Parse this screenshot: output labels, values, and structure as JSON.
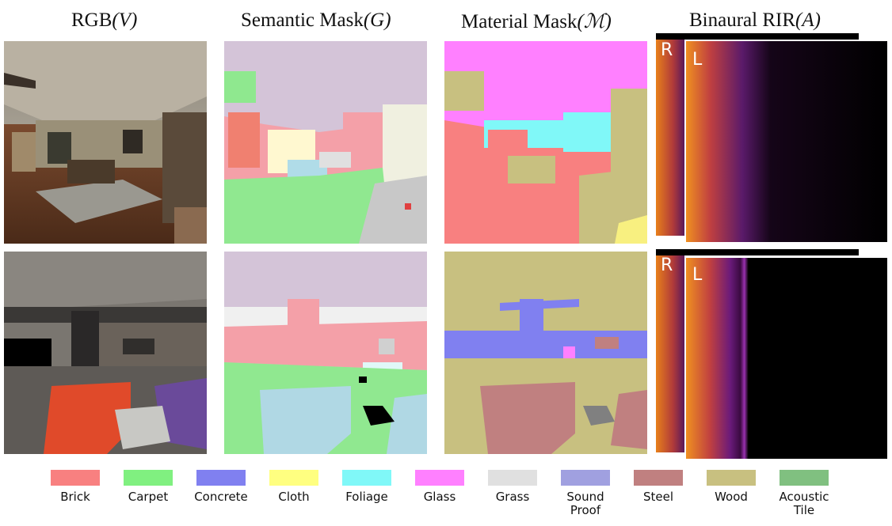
{
  "columns": [
    {
      "label": "RGB",
      "symbol": "(V)"
    },
    {
      "label": "Semantic Mask",
      "symbol": "(G)"
    },
    {
      "label": "Material Mask",
      "symbol": "(ℳ)"
    },
    {
      "label": "Binaural RIR",
      "symbol": "(A)"
    }
  ],
  "spectrogram": {
    "right_label": "R",
    "left_label": "L"
  },
  "legend": [
    {
      "label": "Brick",
      "color": "#f88080"
    },
    {
      "label": "Carpet",
      "color": "#80f080"
    },
    {
      "label": "Concrete",
      "color": "#8080f0"
    },
    {
      "label": "Cloth",
      "color": "#ffff80"
    },
    {
      "label": "Foliage",
      "color": "#80f8f8"
    },
    {
      "label": "Glass",
      "color": "#ff80ff"
    },
    {
      "label": "Grass",
      "color": "#e0e0e0"
    },
    {
      "label": "Sound\nProof",
      "color": "#a0a0e0"
    },
    {
      "label": "Steel",
      "color": "#c08080"
    },
    {
      "label": "Wood",
      "color": "#c8c080"
    },
    {
      "label": "Acoustic\nTile",
      "color": "#80c080"
    }
  ]
}
